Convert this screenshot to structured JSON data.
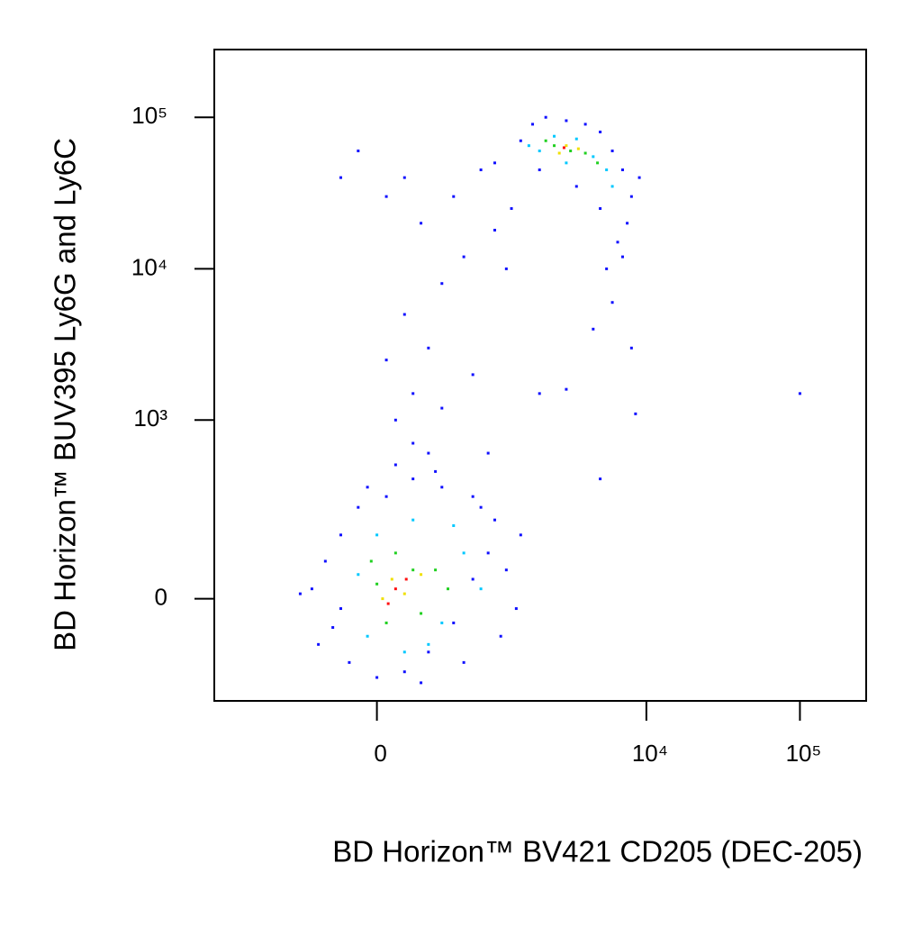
{
  "chart_data": {
    "type": "scatter",
    "x_label": "BD Horizon™ BV421 CD205 (DEC-205)",
    "y_label": "BD Horizon™ BUV395 Ly6G and Ly6C",
    "xscale": "biexponential",
    "xlinthresh": 352,
    "yscale": "biexponential",
    "ylinthresh": 133,
    "xlim": [
      -2000,
      270000
    ],
    "ylim": [
      -300,
      280000
    ],
    "xticks": [
      0,
      {
        "value": 10000,
        "label": "10⁴"
      },
      {
        "value": 100000,
        "label": "10⁵"
      }
    ],
    "yticks": [
      0,
      {
        "value": 1000,
        "label": "10³"
      },
      {
        "value": 10000,
        "label": "10⁴"
      },
      {
        "value": 100000,
        "label": "10⁵"
      }
    ],
    "series": [
      {
        "color": "#1010ff",
        "x": [
          -400,
          -300,
          -250,
          -200,
          -150,
          -100,
          0,
          50,
          150,
          300,
          500,
          700,
          900,
          1200,
          1500,
          800,
          400,
          200,
          -50,
          -350,
          1100,
          600,
          250,
          -200,
          1000,
          1400,
          -500,
          700,
          350,
          100,
          100,
          200,
          50,
          300,
          150,
          400,
          600,
          250,
          500,
          800,
          1000,
          1200,
          200,
          400,
          700,
          900,
          150,
          50,
          1300,
          1000,
          2000,
          300,
          -100,
          -200,
          1500,
          1800,
          2200,
          3000,
          4000,
          5000,
          6000,
          7000,
          8000,
          7500,
          6500,
          5500,
          6000,
          4500,
          8000,
          5000,
          3500,
          2000,
          9000,
          7000,
          100000,
          5000,
          8500,
          3000
        ],
        "values": [
          20,
          80,
          -60,
          150,
          -150,
          250,
          -200,
          300,
          -180,
          -120,
          -50,
          40,
          100,
          60,
          150,
          250,
          350,
          400,
          350,
          -100,
          -80,
          -150,
          -220,
          -20,
          200,
          -20,
          10,
          300,
          450,
          500,
          1000,
          1500,
          2500,
          3000,
          5000,
          8000,
          12000,
          20000,
          30000,
          45000,
          18000,
          10000,
          700,
          1200,
          2000,
          600,
          40000,
          30000,
          25000,
          50000,
          1500,
          600,
          60000,
          40000,
          70000,
          90000,
          100000,
          95000,
          90000,
          80000,
          60000,
          45000,
          30000,
          20000,
          15000,
          10000,
          6000,
          4000,
          3000,
          25000,
          35000,
          45000,
          40000,
          12000,
          1500,
          400,
          1100,
          1600
        ]
      },
      {
        "color": "#00c8ff",
        "x": [
          -100,
          0,
          200,
          400,
          600,
          300,
          -50,
          500,
          800,
          150,
          2000,
          2500,
          3500,
          4500,
          5500,
          3000,
          6000,
          1700
        ],
        "values": [
          50,
          150,
          200,
          -50,
          100,
          -100,
          -80,
          180,
          20,
          -120,
          60000,
          75000,
          72000,
          55000,
          45000,
          50000,
          35000,
          65000
        ]
      },
      {
        "color": "#20d020",
        "x": [
          0,
          100,
          250,
          350,
          50,
          200,
          450,
          -30,
          2500,
          3200,
          4000,
          2200,
          4800
        ],
        "values": [
          30,
          100,
          -30,
          60,
          -50,
          60,
          20,
          80,
          65000,
          60000,
          58000,
          70000,
          50000
        ]
      },
      {
        "color": "#f0e000",
        "x": [
          80,
          150,
          250,
          30,
          3000,
          2700,
          3600
        ],
        "values": [
          40,
          10,
          50,
          0,
          65000,
          58000,
          62000
        ]
      },
      {
        "color": "#ff1010",
        "x": [
          100,
          160,
          60,
          2900
        ],
        "values": [
          20,
          40,
          -10,
          63000
        ]
      }
    ]
  }
}
